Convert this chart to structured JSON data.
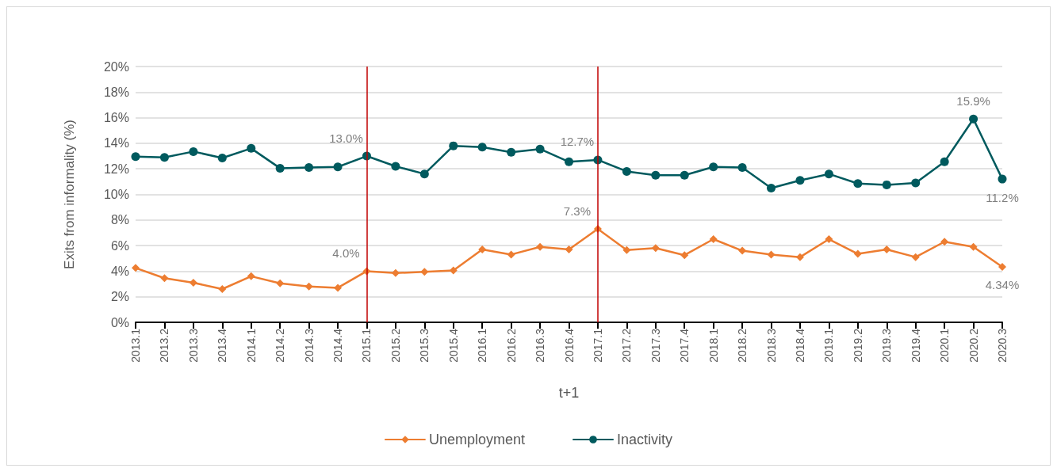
{
  "chart_data": {
    "type": "line",
    "xlabel": "t+1",
    "ylabel": "Exits from informality (%)",
    "categories": [
      "2013.1",
      "2013.2",
      "2013.3",
      "2013.4",
      "2014.1",
      "2014.2",
      "2014.3",
      "2014.4",
      "2015.1",
      "2015.2",
      "2015.3",
      "2015.4",
      "2016.1",
      "2016.2",
      "2016.3",
      "2016.4",
      "2017.1",
      "2017.2",
      "2017.3",
      "2017.4",
      "2018.1",
      "2018.2",
      "2018.3",
      "2018.4",
      "2019.1",
      "2019.2",
      "2019.3",
      "2019.4",
      "2020.1",
      "2020.2",
      "2020.3"
    ],
    "series": [
      {
        "name": "Unemployment",
        "color": "#ed7d31",
        "marker": "diamond",
        "values": [
          4.25,
          3.45,
          3.1,
          2.6,
          3.6,
          3.05,
          2.8,
          2.7,
          4.0,
          3.85,
          3.95,
          4.05,
          5.7,
          5.3,
          5.9,
          5.7,
          7.3,
          5.65,
          5.8,
          5.25,
          6.5,
          5.6,
          5.3,
          5.1,
          6.5,
          5.35,
          5.7,
          5.1,
          6.3,
          5.9,
          4.34
        ],
        "value_labels": [
          null,
          null,
          null,
          null,
          null,
          null,
          null,
          null,
          "4.0%",
          null,
          null,
          null,
          null,
          null,
          null,
          null,
          "7.3%",
          null,
          null,
          null,
          null,
          null,
          null,
          null,
          null,
          null,
          null,
          null,
          null,
          null,
          "4.34%"
        ]
      },
      {
        "name": "Inactivity",
        "color": "#005a5e",
        "marker": "circle",
        "values": [
          12.95,
          12.9,
          13.35,
          12.85,
          13.6,
          12.05,
          12.1,
          12.15,
          13.0,
          12.2,
          11.6,
          13.8,
          13.7,
          13.3,
          13.55,
          12.55,
          12.7,
          11.8,
          11.5,
          11.5,
          12.15,
          12.1,
          10.5,
          11.1,
          11.6,
          10.85,
          10.75,
          10.9,
          12.55,
          15.9,
          11.2
        ],
        "value_labels": [
          null,
          null,
          null,
          null,
          null,
          null,
          null,
          null,
          "13.0%",
          null,
          null,
          null,
          null,
          null,
          null,
          null,
          "12.7%",
          null,
          null,
          null,
          null,
          null,
          null,
          null,
          null,
          null,
          null,
          null,
          null,
          "15.9%",
          "11.2%"
        ]
      }
    ],
    "ylim": [
      0,
      20
    ],
    "yticks": [
      {
        "value": 0,
        "label": "0%"
      },
      {
        "value": 2,
        "label": "2%"
      },
      {
        "value": 4,
        "label": "4%"
      },
      {
        "value": 6,
        "label": "6%"
      },
      {
        "value": 8,
        "label": "8%"
      },
      {
        "value": 10,
        "label": "10%"
      },
      {
        "value": 12,
        "label": "12%"
      },
      {
        "value": 14,
        "label": "14%"
      },
      {
        "value": 16,
        "label": "16%"
      },
      {
        "value": 18,
        "label": "18%"
      },
      {
        "value": 20,
        "label": "20%"
      }
    ],
    "ref_lines": [
      {
        "axis": "x",
        "value": "2015.1",
        "color": "#c00000"
      },
      {
        "axis": "x",
        "value": "2017.1",
        "color": "#c00000"
      }
    ],
    "grid": "y",
    "legend": "bottom",
    "line_style": "solid"
  }
}
